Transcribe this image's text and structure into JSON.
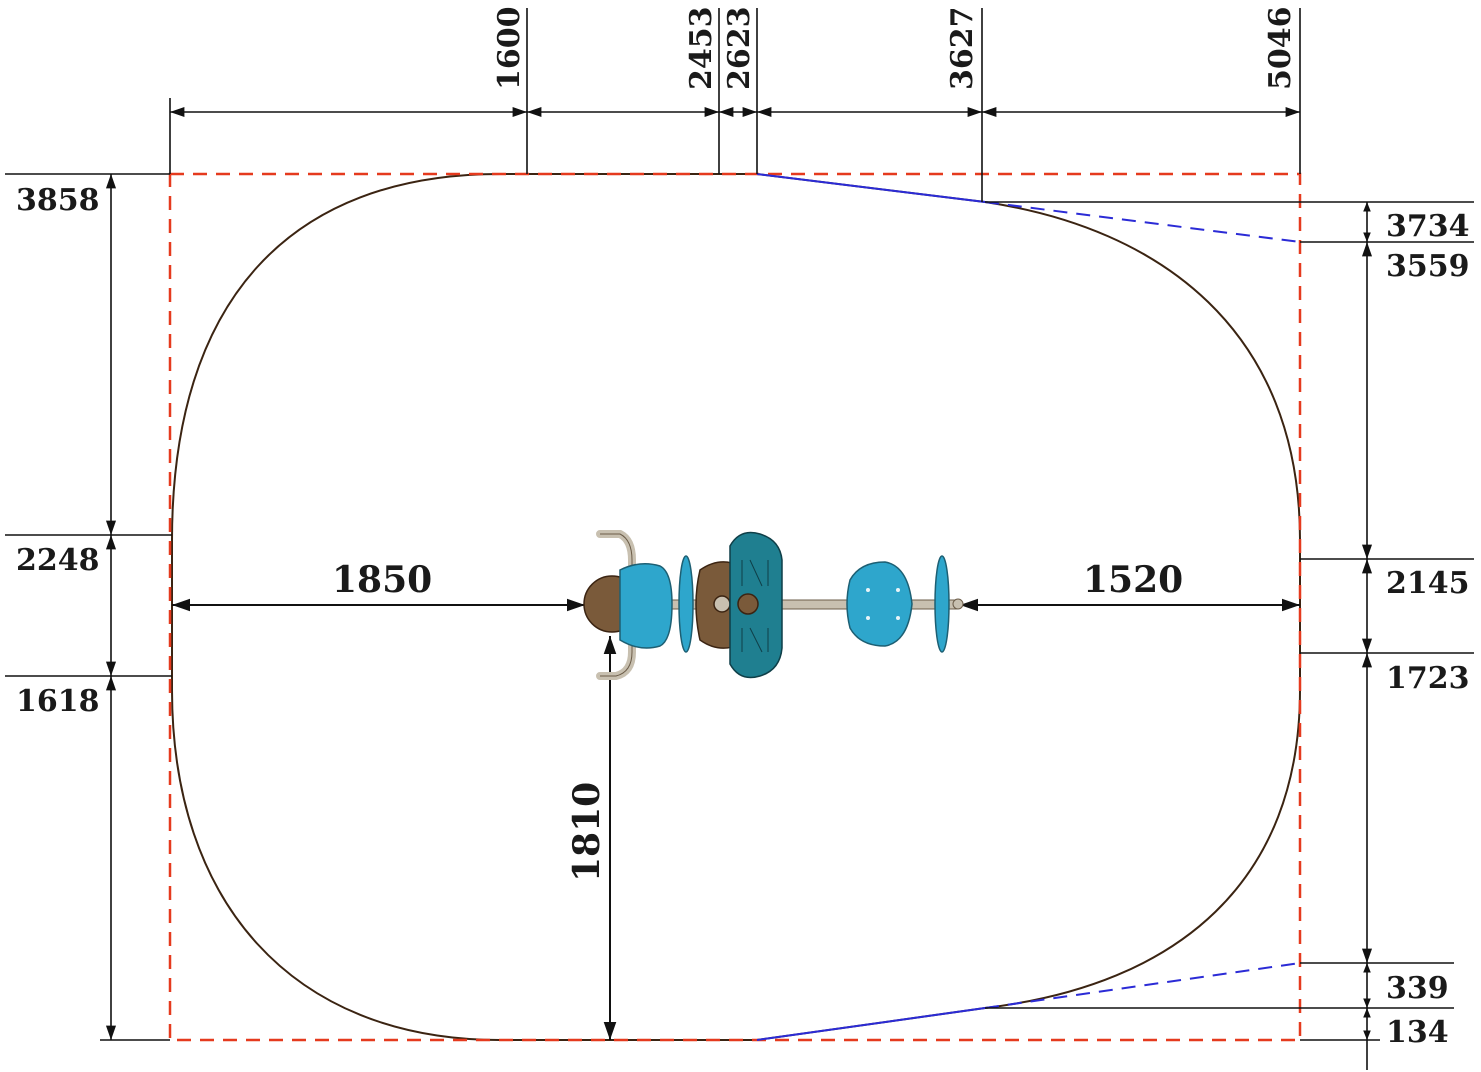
{
  "drawing": {
    "colors": {
      "outline": "#3b2412",
      "dim": "#111111",
      "bbox": "#e53a1e",
      "slope": "#2b2bd6",
      "seat": "#2ea6cc",
      "seat_dark": "#1f7f90",
      "base": "#7a5a3a",
      "rail": "#c8c0b0"
    },
    "top_dims": [
      "1600",
      "2453",
      "2623",
      "3627",
      "5046"
    ],
    "left_dims": [
      "3858",
      "2248",
      "1618"
    ],
    "right_dims": [
      "3734",
      "3559",
      "2145",
      "1723",
      "339",
      "134"
    ],
    "clearances": {
      "left": "1850",
      "right": "1520",
      "down": "1810"
    }
  }
}
